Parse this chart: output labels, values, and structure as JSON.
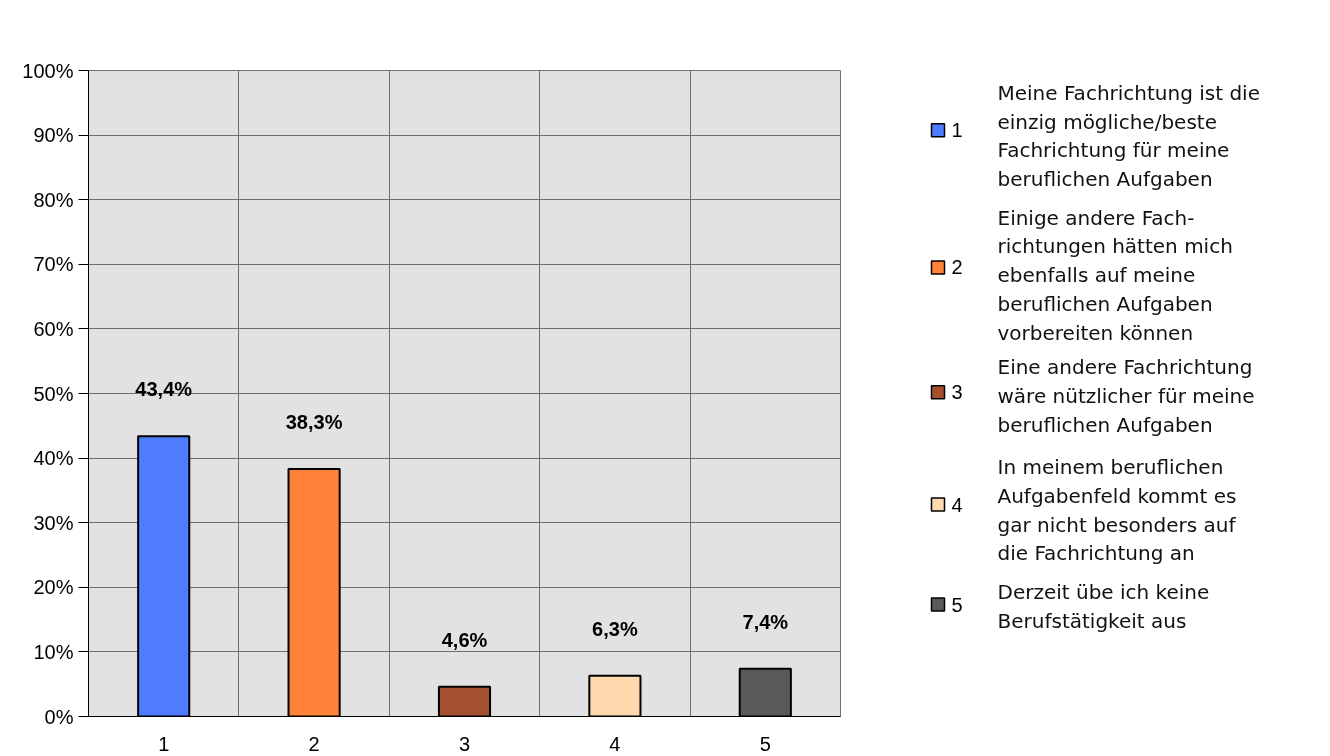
{
  "chart_data": {
    "type": "bar",
    "categories": [
      "1",
      "2",
      "3",
      "4",
      "5"
    ],
    "series": [
      {
        "name": "1",
        "color": "#4f7bff",
        "values": [
          43.4,
          null,
          null,
          null,
          null
        ],
        "value_labels": [
          "43,4%",
          null,
          null,
          null,
          null
        ]
      },
      {
        "name": "2",
        "color": "#ff8238",
        "values": [
          null,
          38.3,
          null,
          null,
          null
        ],
        "value_labels": [
          null,
          "38,3%",
          null,
          null,
          null
        ]
      },
      {
        "name": "3",
        "color": "#a4502e",
        "values": [
          null,
          null,
          4.6,
          null,
          null
        ],
        "value_labels": [
          null,
          null,
          "4,6%",
          null,
          null
        ]
      },
      {
        "name": "4",
        "color": "#ffd9ae",
        "values": [
          null,
          null,
          null,
          6.3,
          null
        ],
        "value_labels": [
          null,
          null,
          null,
          "6,3%",
          null
        ]
      },
      {
        "name": "5",
        "color": "#5a5a5a",
        "values": [
          null,
          null,
          null,
          null,
          7.4
        ],
        "value_labels": [
          null,
          null,
          null,
          null,
          "7,4%"
        ]
      }
    ],
    "stacked": true,
    "ylim": [
      0,
      100
    ],
    "yticks": [
      {
        "value": 0,
        "label": "0%"
      },
      {
        "value": 10,
        "label": "10%"
      },
      {
        "value": 20,
        "label": "20%"
      },
      {
        "value": 30,
        "label": "30%"
      },
      {
        "value": 40,
        "label": "40%"
      },
      {
        "value": 50,
        "label": "50%"
      },
      {
        "value": 60,
        "label": "60%"
      },
      {
        "value": 70,
        "label": "70%"
      },
      {
        "value": 80,
        "label": "80%"
      },
      {
        "value": 90,
        "label": "90%"
      },
      {
        "value": 100,
        "label": "100%"
      }
    ],
    "grid": true,
    "legend": "right",
    "annotations": [
      "Meine Fachrichtung ist die\neinzig mögliche/beste\nFachrichtung für meine\nberuflichen Aufgaben",
      "Einige andere Fach-\nrichtungen hätten mich\nebenfalls auf meine\nberuflichen Aufgaben\nvorbereiten können",
      "Eine andere Fachrichtung\nwäre nützlicher für meine\nberuflichen Aufgaben",
      "In meinem beruflichen\nAufgabenfeld kommt es\ngar nicht besonders auf\ndie Fachrichtung an",
      "Derzeit übe ich keine\nBerufstätigkeit aus"
    ]
  }
}
